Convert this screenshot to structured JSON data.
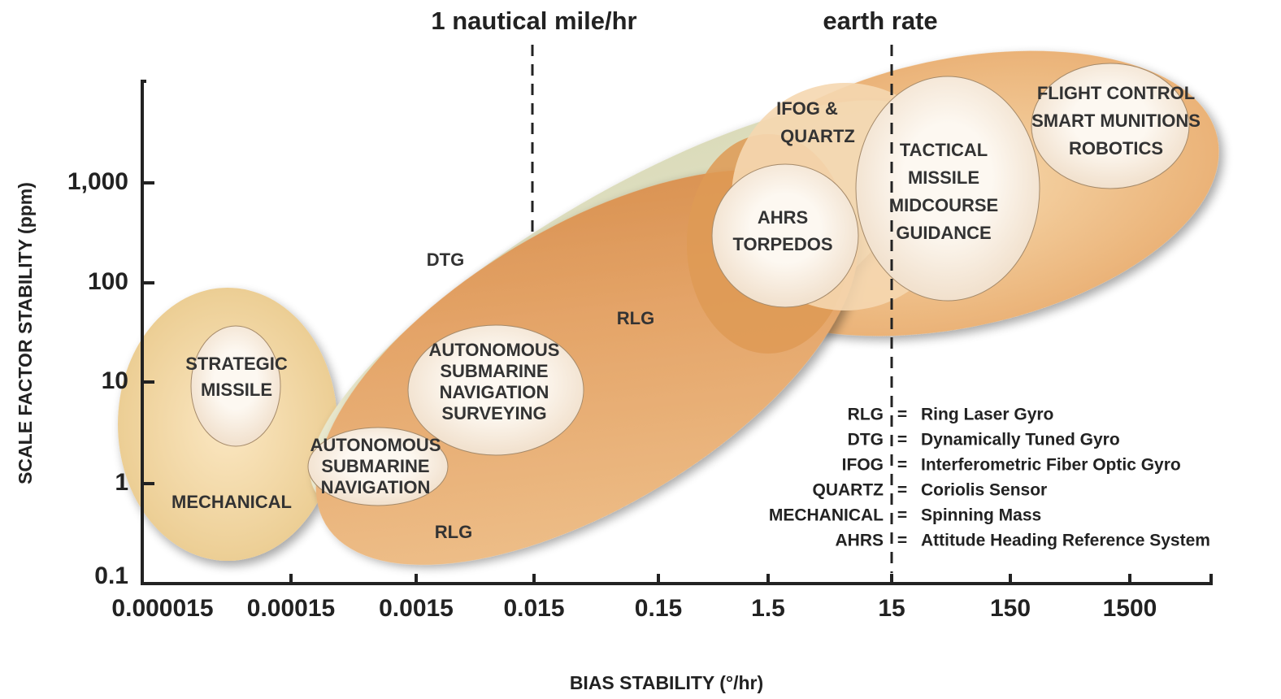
{
  "reference_lines": [
    "1 nautical mile/hr",
    "earth rate"
  ],
  "axes": {
    "x_label": "BIAS STABILITY (°/hr)",
    "y_label": "SCALE FACTOR STABILITY (ppm)",
    "x_ticks": [
      "0.000015",
      "0.00015",
      "0.0015",
      "0.015",
      "0.15",
      "1.5",
      "15",
      "150",
      "1500"
    ],
    "y_ticks": [
      "1,000",
      "100",
      "10",
      "1",
      "0.1"
    ]
  },
  "regions": {
    "mechanical": "MECHANICAL",
    "dtg": "DTG",
    "rlg_upper": "RLG",
    "rlg_lower": "RLG",
    "ifog": [
      "IFOG &",
      "QUARTZ"
    ]
  },
  "applications": [
    [
      "STRATEGIC",
      "MISSILE"
    ],
    [
      "AUTONOMOUS",
      "SUBMARINE",
      "NAVIGATION"
    ],
    [
      "AUTONOMOUS",
      "SUBMARINE",
      "NAVIGATION",
      "SURVEYING"
    ],
    [
      "AHRS",
      "TORPEDOS"
    ],
    [
      "TACTICAL",
      "MISSILE",
      "MIDCOURSE",
      "GUIDANCE"
    ],
    [
      "FLIGHT CONTROL",
      "SMART MUNITIONS",
      "ROBOTICS"
    ]
  ],
  "legend": {
    "separator": "=",
    "items": [
      {
        "abbr": "RLG",
        "text": "Ring Laser Gyro"
      },
      {
        "abbr": "DTG",
        "text": "Dynamically Tuned Gyro"
      },
      {
        "abbr": "IFOG",
        "text": "Interferometric Fiber Optic Gyro"
      },
      {
        "abbr": "QUARTZ",
        "text": "Coriolis Sensor"
      },
      {
        "abbr": "MECHANICAL",
        "text": "Spinning Mass"
      },
      {
        "abbr": "AHRS",
        "text": "Attitude Heading Reference System"
      }
    ]
  }
}
